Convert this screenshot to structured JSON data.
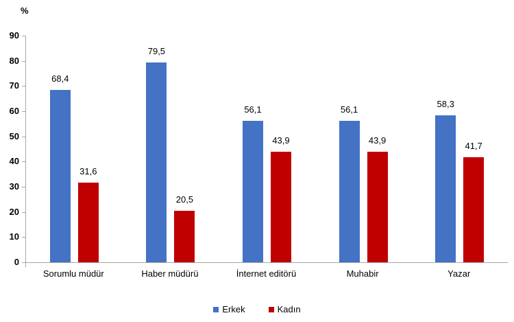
{
  "chart_data": {
    "type": "bar",
    "title": "",
    "y_axis": {
      "unit_label": "%",
      "min": 0,
      "max": 90,
      "step": 10,
      "ticks": [
        "90",
        "80",
        "70",
        "60",
        "50",
        "40",
        "30",
        "20",
        "10",
        "0"
      ]
    },
    "categories": [
      "Sorumlu müdür",
      "Haber müdürü",
      "İnternet editörü",
      "Muhabir",
      "Yazar"
    ],
    "series": [
      {
        "name": "Erkek",
        "color": "#4472C4",
        "values": [
          68.4,
          79.5,
          56.1,
          56.1,
          58.3
        ],
        "labels": [
          "68,4",
          "79,5",
          "56,1",
          "56,1",
          "58,3"
        ]
      },
      {
        "name": "Kadın",
        "color": "#C00000",
        "values": [
          31.6,
          20.5,
          43.9,
          43.9,
          41.7
        ],
        "labels": [
          "31,6",
          "20,5",
          "43,9",
          "43,9",
          "41,7"
        ]
      }
    ],
    "legend_position": "bottom",
    "grid": false,
    "axis_color": "#A6A6A6",
    "text_color": "#000000"
  }
}
